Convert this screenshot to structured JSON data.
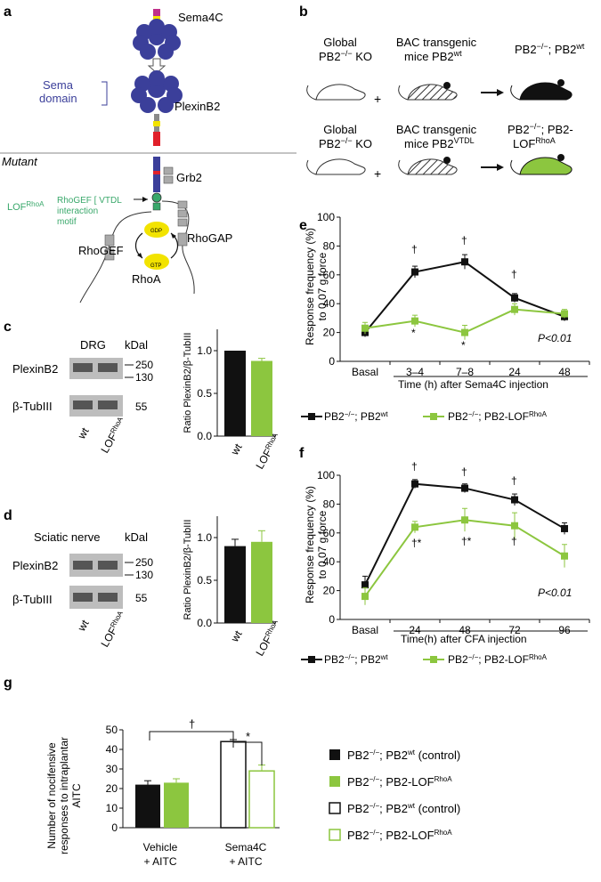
{
  "colors": {
    "wt": "#111111",
    "lof": "#8cc63f",
    "sema": "#3b3f9a",
    "green_text": "#3aa86b",
    "yellow": "#f2e300",
    "red": "#e0202a"
  },
  "panel_letters": {
    "a": "a",
    "b": "b",
    "c": "c",
    "d": "d",
    "e": "e",
    "f": "f",
    "g": "g"
  },
  "panel_a": {
    "sema4c": "Sema4C",
    "sema_domain_1": "Sema",
    "sema_domain_2": "domain",
    "plexinb2": "PlexinB2",
    "mutant": "Mutant",
    "grb2": "Grb2",
    "lof_main": "LOF",
    "lof_sup": "RhoA",
    "motif_1": "RhoGEF [ VTDL",
    "motif_2": "interaction",
    "motif_3": "motif",
    "rhogef": "RhoGEF",
    "rhogap": "RhoGAP",
    "rhoa": "RhoA",
    "gdp": "GDP",
    "gtp": "GTP"
  },
  "panel_b": {
    "row1": {
      "left_1": "Global",
      "left_2": "PB2",
      "left_sup": "−/−",
      "left_3": "KO",
      "mid_1": "BAC transgenic",
      "mid_2": "mice PB2",
      "mid_sup": "wt",
      "right_main": "PB2",
      "right_sup": "−/−",
      "right_rest": "; PB2",
      "right_sup2": "wt"
    },
    "row2": {
      "left_1": "Global",
      "left_2": "PB2",
      "left_sup": "−/−",
      "left_3": "KO",
      "mid_1": "BAC transgenic",
      "mid_2": "mice PB2",
      "mid_sup": "VTDL",
      "right_1a": "PB2",
      "right_1sup": "−/−",
      "right_1b": "; PB2-",
      "right_2a": "LOF",
      "right_2sup": "RhoA"
    },
    "plus": "+"
  },
  "panel_c": {
    "head_tissue": "DRG",
    "kda": "kDal",
    "band1": "PlexinB2",
    "band2": "β-TubIII",
    "mw1": "250",
    "mw2": "130",
    "mw3": "55",
    "lane1": "wt",
    "lane2_main": "LOF",
    "lane2_sup": "RhoA",
    "ylabel": "Ratio PlexinB2/β-TubIII"
  },
  "panel_d": {
    "head_tissue": "Sciatic nerve",
    "kda": "kDal",
    "band1": "PlexinB2",
    "band2": "β-TubIII",
    "mw1": "250",
    "mw2": "130",
    "mw3": "55",
    "lane1": "wt",
    "lane2_main": "LOF",
    "lane2_sup": "RhoA",
    "ylabel": "Ratio PlexinB2/β-TubIII"
  },
  "panel_e": {
    "ylabel_1": "Response frequency (%)",
    "ylabel_2": "to 0.07 g force",
    "xlabel": "Time (h) after Sema4C injection",
    "pval": "P<0.01",
    "legend_wt_main": "PB2",
    "legend_wt_sup": "−/−",
    "legend_wt_rest": "; PB2",
    "legend_wt_sup2": "wt",
    "legend_lof_main": "PB2",
    "legend_lof_sup": "−/−",
    "legend_lof_rest": "; PB2-LOF",
    "legend_lof_sup2": "RhoA"
  },
  "panel_f": {
    "ylabel_1": "Response frequency (%)",
    "ylabel_2": "to 0.07 g force",
    "xlabel": "Time(h) after CFA injection",
    "pval": "P<0.01",
    "legend_wt_main": "PB2",
    "legend_wt_sup": "−/−",
    "legend_wt_rest": "; PB2",
    "legend_wt_sup2": "wt",
    "legend_lof_main": "PB2",
    "legend_lof_sup": "−/−",
    "legend_lof_rest": "; PB2-LOF",
    "legend_lof_sup2": "RhoA"
  },
  "panel_g": {
    "ylabel_1": "Number of nocifensive",
    "ylabel_2": "responses to intraplantar",
    "ylabel_3": "AITC",
    "group1_a": "Vehicle",
    "group1_b": "+ AITC",
    "group2_a": "Sema4C",
    "group2_b": "+ AITC",
    "dagger": "†",
    "star": "*",
    "legend": [
      {
        "main": "PB2",
        "sup": "−/−",
        "rest": "; PB2",
        "sup2": "wt",
        "tail": " (control)"
      },
      {
        "main": "PB2",
        "sup": "−/−",
        "rest": "; PB2-LOF",
        "sup2": "RhoA",
        "tail": ""
      },
      {
        "main": "PB2",
        "sup": "−/−",
        "rest": "; PB2",
        "sup2": "wt",
        "tail": " (control)"
      },
      {
        "main": "PB2",
        "sup": "−/−",
        "rest": "; PB2-LOF",
        "sup2": "RhoA",
        "tail": ""
      }
    ]
  },
  "chart_data": [
    {
      "id": "c",
      "type": "bar",
      "categories": [
        "wt",
        "LOF RhoA"
      ],
      "values": [
        1.0,
        0.88
      ],
      "errors": [
        0.0,
        0.03
      ],
      "ylabel": "Ratio PlexinB2/β-TubIII",
      "ylim": [
        0,
        1.25
      ],
      "yticks": [
        "0.0",
        "0.5",
        "1.0"
      ]
    },
    {
      "id": "d",
      "type": "bar",
      "categories": [
        "wt",
        "LOF RhoA"
      ],
      "values": [
        0.9,
        0.95
      ],
      "errors": [
        0.08,
        0.13
      ],
      "ylabel": "Ratio PlexinB2/β-TubIII",
      "ylim": [
        0,
        1.25
      ],
      "yticks": [
        "0.0",
        "0.5",
        "1.0"
      ]
    },
    {
      "id": "e",
      "type": "line",
      "categories": [
        "Basal",
        "3–4",
        "7–8",
        "24",
        "48"
      ],
      "series": [
        {
          "name": "PB2−/−; PB2wt",
          "values": [
            20,
            62,
            69,
            44,
            31
          ],
          "errors": [
            3,
            4,
            5,
            3,
            3
          ]
        },
        {
          "name": "PB2−/−; PB2-LOFRhoA",
          "values": [
            23,
            28,
            20,
            36,
            33
          ],
          "errors": [
            4,
            4,
            5,
            4,
            3
          ]
        }
      ],
      "ylabel": "Response frequency (%) to 0.07 g force",
      "xlabel": "Time (h) after Sema4C injection",
      "ylim": [
        0,
        100
      ],
      "yticks": [
        "0",
        "20",
        "40",
        "60",
        "80",
        "100"
      ],
      "annotations": [
        "†",
        "†",
        "†",
        "*",
        "*"
      ]
    },
    {
      "id": "f",
      "type": "line",
      "categories": [
        "Basal",
        "24",
        "48",
        "72",
        "96"
      ],
      "series": [
        {
          "name": "PB2−/−; PB2wt",
          "values": [
            24,
            94,
            91,
            83,
            63
          ],
          "errors": [
            6,
            3,
            3,
            4,
            4
          ]
        },
        {
          "name": "PB2−/−; PB2-LOFRhoA",
          "values": [
            16,
            64,
            69,
            65,
            44
          ],
          "errors": [
            6,
            4,
            8,
            9,
            8
          ]
        }
      ],
      "ylabel": "Response frequency (%) to 0.07 g force",
      "xlabel": "Time(h) after CFA injection",
      "ylim": [
        0,
        100
      ],
      "yticks": [
        "0",
        "20",
        "40",
        "60",
        "80",
        "100"
      ],
      "annotations": [
        "†",
        "†",
        "†",
        "†*",
        "†*",
        "†"
      ]
    },
    {
      "id": "g",
      "type": "bar",
      "categories": [
        "Vehicle + AITC",
        "Sema4C + AITC"
      ],
      "series": [
        {
          "name": "PB2−/−; PB2wt (control)",
          "values": [
            22,
            44
          ],
          "errors": [
            2,
            1
          ]
        },
        {
          "name": "PB2−/−; PB2-LOFRhoA",
          "values": [
            23,
            29
          ],
          "errors": [
            2,
            3
          ]
        }
      ],
      "ylim": [
        0,
        50
      ],
      "yticks": [
        "0",
        "10",
        "20",
        "30",
        "40",
        "50"
      ],
      "ylabel": "Number of nocifensive responses to intraplantar AITC"
    }
  ]
}
